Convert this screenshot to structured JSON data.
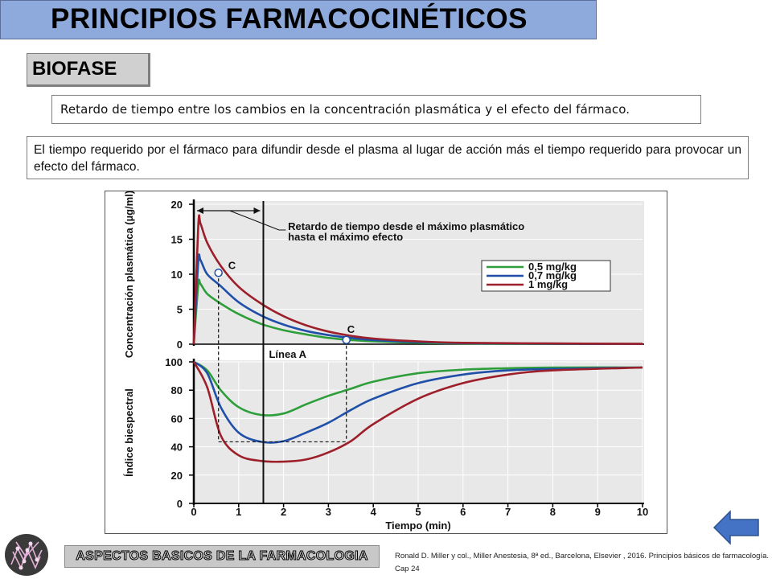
{
  "title": "PRINCIPIOS FARMACOCINÉTICOS",
  "section": "BIOFASE",
  "definition": "Retardo de tiempo entre los cambios en la concentración plasmática y el efecto del fármaco.",
  "explanation": "El tiempo requerido por el fármaco para difundir desde el plasma al lugar de acción más el tiempo requerido para provocar un efecto del fármaco.",
  "footer_label": "ASPECTOS BASICOS DE LA FARMACOLOGIA",
  "reference": "Ronald D. Miller y col., Miller Anestesia, 8ª ed., Barcelona, Elsevier , 2016. Principios básicos de farmacología. Cap 24",
  "icons": {
    "logo": "molecule-logo-icon",
    "back": "back-arrow-icon"
  },
  "colors": {
    "title_bg": "#8ea9db",
    "series_05": "#2e9e3a",
    "series_07": "#1f4fa8",
    "series_1": "#9c1f2a",
    "plot_bg": "#e8e8e8",
    "back_arrow": "#4472c4"
  },
  "chart_data": [
    {
      "type": "line",
      "ylabel": "Concentración plasmática (µg/ml)",
      "xlabel": "",
      "xlim": [
        0,
        10
      ],
      "ylim": [
        0,
        20
      ],
      "yticks": [
        "0",
        "5",
        "10",
        "15",
        "20"
      ],
      "annotation": "Retardo de tiempo desde el máximo plasmático hasta el máximo efecto",
      "point_labels": [
        "C",
        "C"
      ],
      "legend_placement": "right",
      "series": [
        {
          "name": "0,5 mg/kg",
          "x": [
            0,
            0.1,
            0.15,
            0.3,
            0.6,
            1,
            1.5,
            2,
            2.5,
            3,
            3.5,
            4,
            5,
            6,
            8,
            10
          ],
          "y": [
            0,
            8.5,
            8.6,
            7.2,
            5.8,
            4.3,
            2.9,
            2,
            1.4,
            0.9,
            0.6,
            0.4,
            0.2,
            0.1,
            0.05,
            0.03
          ]
        },
        {
          "name": "0,7 mg/kg",
          "x": [
            0,
            0.1,
            0.15,
            0.3,
            0.6,
            1,
            1.5,
            2,
            2.5,
            3,
            3.5,
            4,
            5,
            6,
            8,
            10
          ],
          "y": [
            0,
            11.8,
            12,
            10,
            8.3,
            6,
            4.1,
            2.8,
            1.9,
            1.3,
            0.9,
            0.6,
            0.3,
            0.15,
            0.07,
            0.04
          ]
        },
        {
          "name": "1 mg/kg",
          "x": [
            0,
            0.1,
            0.15,
            0.3,
            0.6,
            1,
            1.5,
            2,
            2.5,
            3,
            3.5,
            4,
            5,
            6,
            8,
            10
          ],
          "y": [
            0,
            17,
            17.2,
            14.5,
            11.2,
            8.2,
            5.8,
            4,
            2.7,
            1.8,
            1.2,
            0.8,
            0.4,
            0.2,
            0.1,
            0.05
          ]
        }
      ]
    },
    {
      "type": "line",
      "ylabel": "Índice biespectral",
      "xlabel": "Tiempo (min)",
      "xlim": [
        0,
        10
      ],
      "ylim": [
        0,
        100
      ],
      "xticks": [
        "0",
        "1",
        "2",
        "3",
        "4",
        "5",
        "6",
        "7",
        "8",
        "9",
        "10"
      ],
      "yticks": [
        "0",
        "20",
        "40",
        "60",
        "80",
        "100"
      ],
      "line_label": "Línea A",
      "series": [
        {
          "name": "0,5 mg/kg",
          "x": [
            0,
            0.3,
            0.6,
            1,
            1.5,
            2,
            2.5,
            3,
            3.5,
            4,
            5,
            6,
            7,
            8,
            10
          ],
          "y": [
            100,
            94,
            80,
            68,
            62.5,
            63.5,
            70,
            76,
            81,
            86,
            92,
            94.5,
            95.5,
            96,
            96
          ]
        },
        {
          "name": "0,7 mg/kg",
          "x": [
            0,
            0.3,
            0.6,
            1,
            1.5,
            2,
            2.5,
            3,
            3.5,
            4,
            5,
            6,
            7,
            8,
            10
          ],
          "y": [
            100,
            92,
            68,
            50,
            43.5,
            44,
            50,
            57,
            66,
            74,
            85,
            91,
            94,
            95,
            96
          ]
        },
        {
          "name": "1 mg/kg",
          "x": [
            0,
            0.3,
            0.6,
            1,
            1.5,
            2,
            2.5,
            3,
            3.5,
            4,
            5,
            6,
            7,
            8,
            10
          ],
          "y": [
            100,
            82,
            48,
            34,
            30,
            29.5,
            31,
            36,
            44,
            56,
            74,
            85,
            91,
            94,
            96
          ]
        }
      ]
    }
  ]
}
